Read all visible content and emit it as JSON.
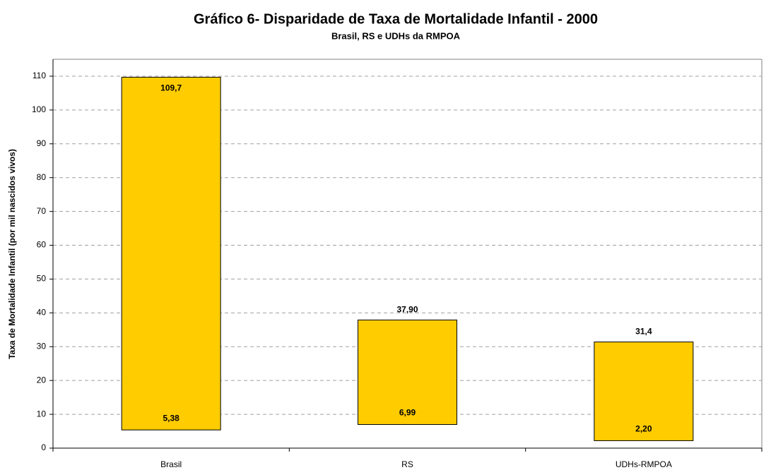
{
  "chart_data": {
    "type": "range_bar",
    "title": "Gráfico 6- Disparidade de Taxa de Mortalidade Infantil - 2000",
    "subtitle": "Brasil, RS e UDHs da RMPOA",
    "y_label": "Taxa de Mortalidade Infantil (por mil nascidos vivos)",
    "categories": [
      "Brasil",
      "RS",
      "UDHs-RMPOA"
    ],
    "low": [
      5.38,
      6.99,
      2.2
    ],
    "low_labels": [
      "5,38",
      "6,99",
      "2,20"
    ],
    "high": [
      109.7,
      37.9,
      31.4
    ],
    "high_labels": [
      "109,7",
      "37,90",
      "31,4"
    ],
    "color": "#ffcc00",
    "ylim": [
      0,
      115
    ],
    "yticks": [
      0,
      10,
      20,
      30,
      40,
      50,
      60,
      70,
      80,
      90,
      100,
      110
    ],
    "grid": true
  }
}
